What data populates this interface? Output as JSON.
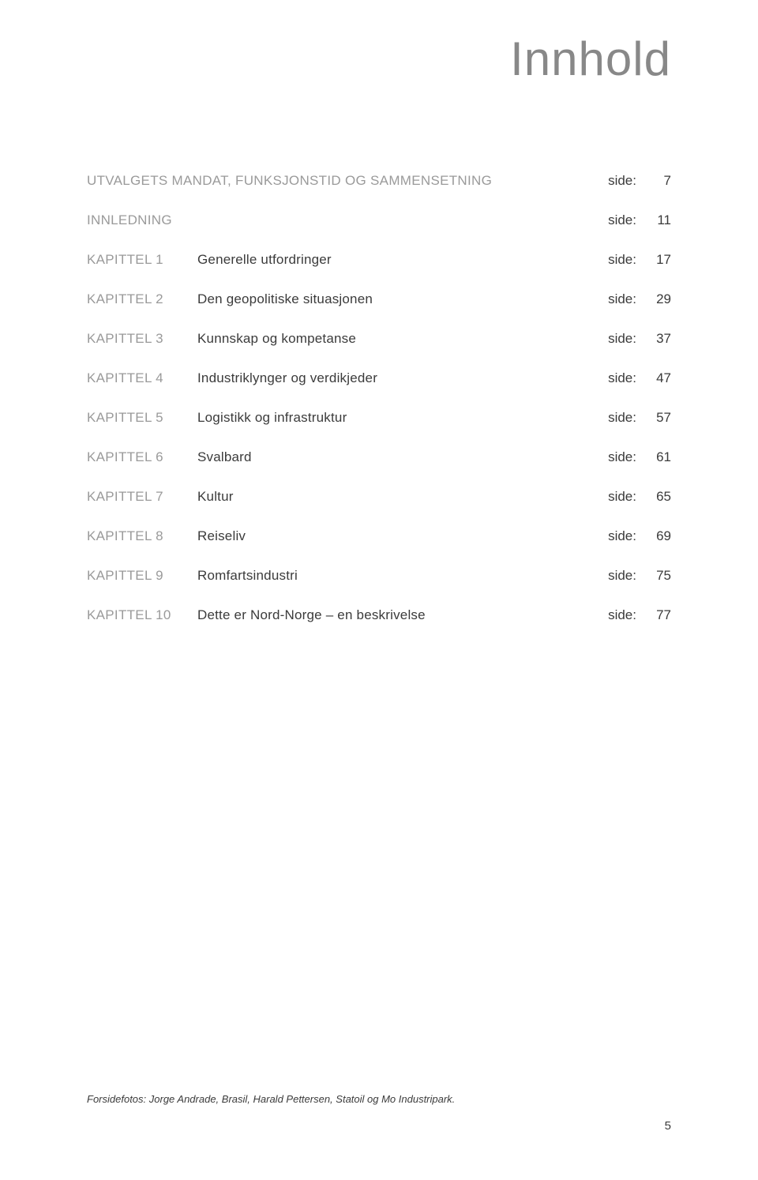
{
  "page": {
    "title": "Innhold",
    "side_label": "side:",
    "page_number": "5",
    "footer_credit": "Forsidefotos: Jorge Andrade, Brasil, Harald Pettersen, Statoil og Mo Industripark.",
    "colors": {
      "title_color": "#888888",
      "label_color": "#9a9a9a",
      "text_color": "#3b3b3b",
      "background": "#ffffff"
    },
    "typography": {
      "title_fontsize": 60,
      "row_fontsize": 17,
      "footer_fontsize": 13,
      "font_family": "Century Gothic"
    }
  },
  "toc": [
    {
      "label": "",
      "label_span": true,
      "desc": "UTVALGETS MANDAT, FUNKSJONSTID OG SAMMENSETNING",
      "page": "7",
      "heading": true
    },
    {
      "label": "",
      "label_span": true,
      "desc": "INNLEDNING",
      "page": "11",
      "heading": true
    },
    {
      "label": "KAPITTEL 1",
      "desc": "Generelle utfordringer",
      "page": "17"
    },
    {
      "label": "KAPITTEL 2",
      "desc": "Den geopolitiske situasjonen",
      "page": "29"
    },
    {
      "label": "KAPITTEL 3",
      "desc": "Kunnskap og kompetanse",
      "page": "37"
    },
    {
      "label": "KAPITTEL 4",
      "desc": "Industriklynger og verdikjeder",
      "page": "47"
    },
    {
      "label": "KAPITTEL 5",
      "desc": "Logistikk og infrastruktur",
      "page": "57"
    },
    {
      "label": "KAPITTEL 6",
      "desc": "Svalbard",
      "page": "61"
    },
    {
      "label": "KAPITTEL 7",
      "desc": "Kultur",
      "page": "65"
    },
    {
      "label": "KAPITTEL 8",
      "desc": "Reiseliv",
      "page": "69"
    },
    {
      "label": "KAPITTEL 9",
      "desc": "Romfartsindustri",
      "page": "75"
    },
    {
      "label": "KAPITTEL 10",
      "desc": "Dette er Nord-Norge – en beskrivelse",
      "page": "77"
    }
  ]
}
